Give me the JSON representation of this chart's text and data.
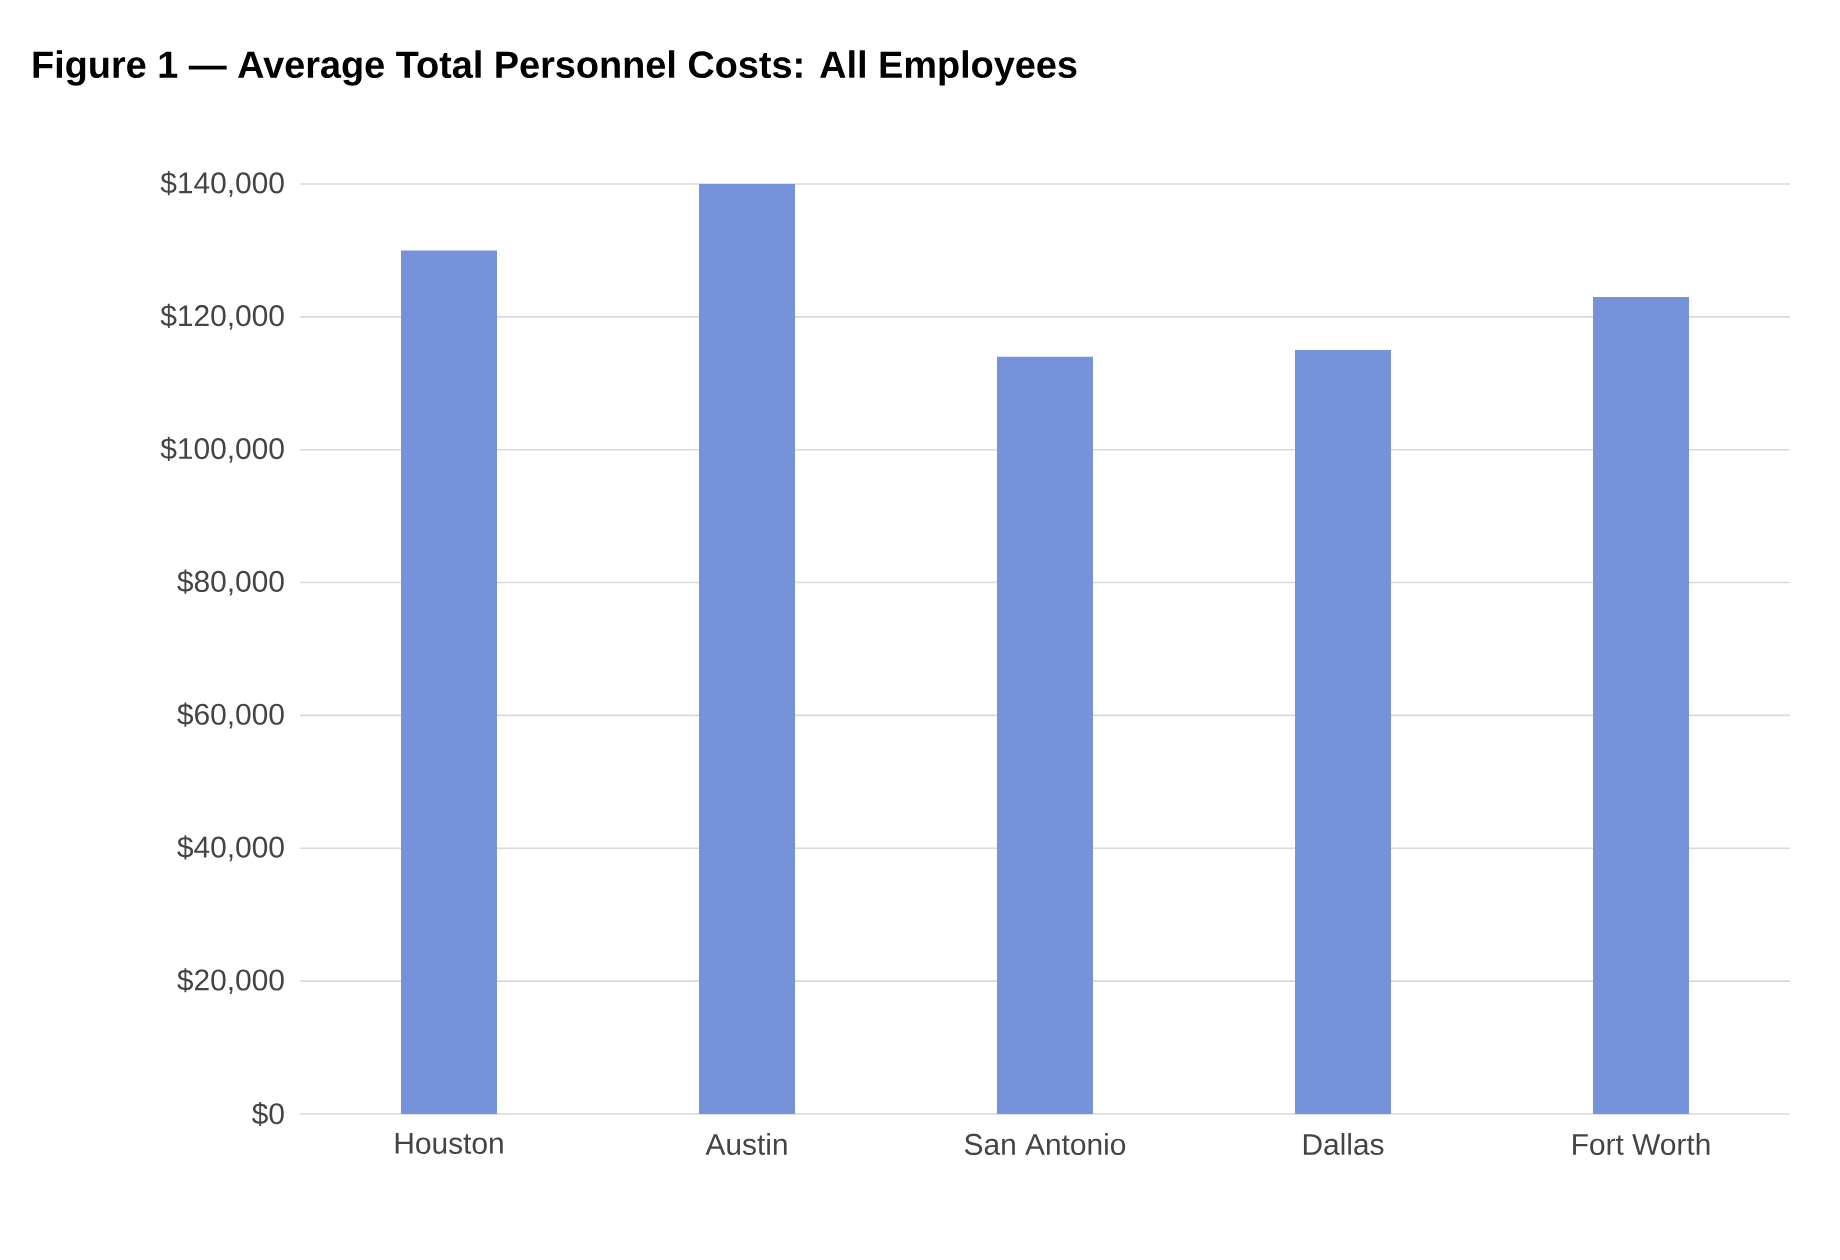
{
  "chart_data": {
    "type": "bar",
    "title": "Figure 1 — Average Total Personnel Costs: All Employees",
    "categories": [
      "Houston",
      "Austin",
      "San Antonio",
      "Dallas",
      "Fort Worth"
    ],
    "values": [
      130000,
      140000,
      114000,
      115000,
      123000
    ],
    "color": "#7592db",
    "ylim": [
      0,
      140000
    ],
    "yticks": [
      {
        "value": 0,
        "label": "$0"
      },
      {
        "value": 20000,
        "label": "$20,000"
      },
      {
        "value": 40000,
        "label": "$40,000"
      },
      {
        "value": 60000,
        "label": "$60,000"
      },
      {
        "value": 80000,
        "label": "$80,000"
      },
      {
        "value": 100000,
        "label": "$100,000"
      },
      {
        "value": 120000,
        "label": "$120,000"
      },
      {
        "value": 140000,
        "label": "$140,000"
      }
    ],
    "grid": "y"
  }
}
